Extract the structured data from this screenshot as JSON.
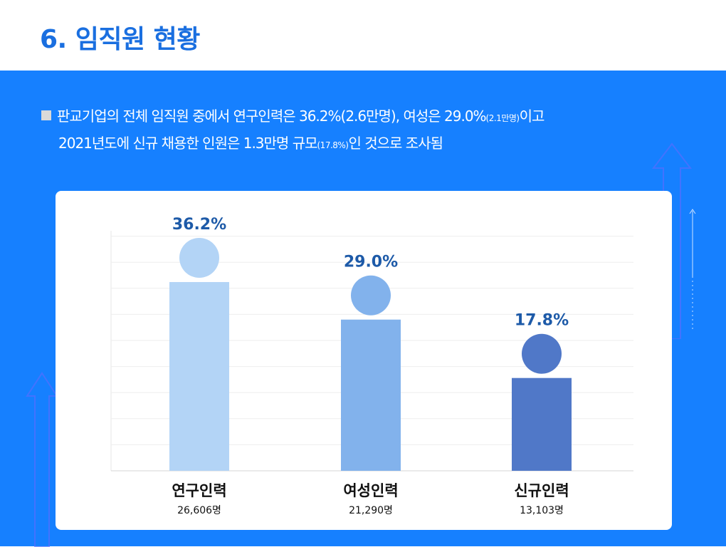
{
  "header": {
    "title": "6. 임직원 현황"
  },
  "summary": {
    "line1_text": "판교기업의 전체 임직원 중에서 연구인력은 36.2%(2.6만명), 여성은 29.0%",
    "line1_small": "(2.1만명)",
    "line1_tail": "이고",
    "line2_text": "2021년도에 신규 채용한 인원은 1.3만명 규모",
    "line2_small": "(17.8%)",
    "line2_tail": "인 것으로 조사됨"
  },
  "colors": {
    "accent": "#1a6fe0",
    "panel": "#1680ff",
    "pct_text": "#1d5aa8",
    "bar_1": "#b3d4f6",
    "bar_2": "#82b2ec",
    "bar_3": "#5078c8"
  },
  "chart_data": {
    "type": "bar",
    "categories": [
      "연구인력",
      "여성인력",
      "신규인력"
    ],
    "values": [
      36.2,
      29.0,
      17.8
    ],
    "value_labels": [
      "36.2%",
      "29.0%",
      "17.8%"
    ],
    "counts": [
      "26,606명",
      "21,290명",
      "13,103명"
    ],
    "ylim": [
      0,
      60
    ],
    "grid": true,
    "legend": "none"
  }
}
